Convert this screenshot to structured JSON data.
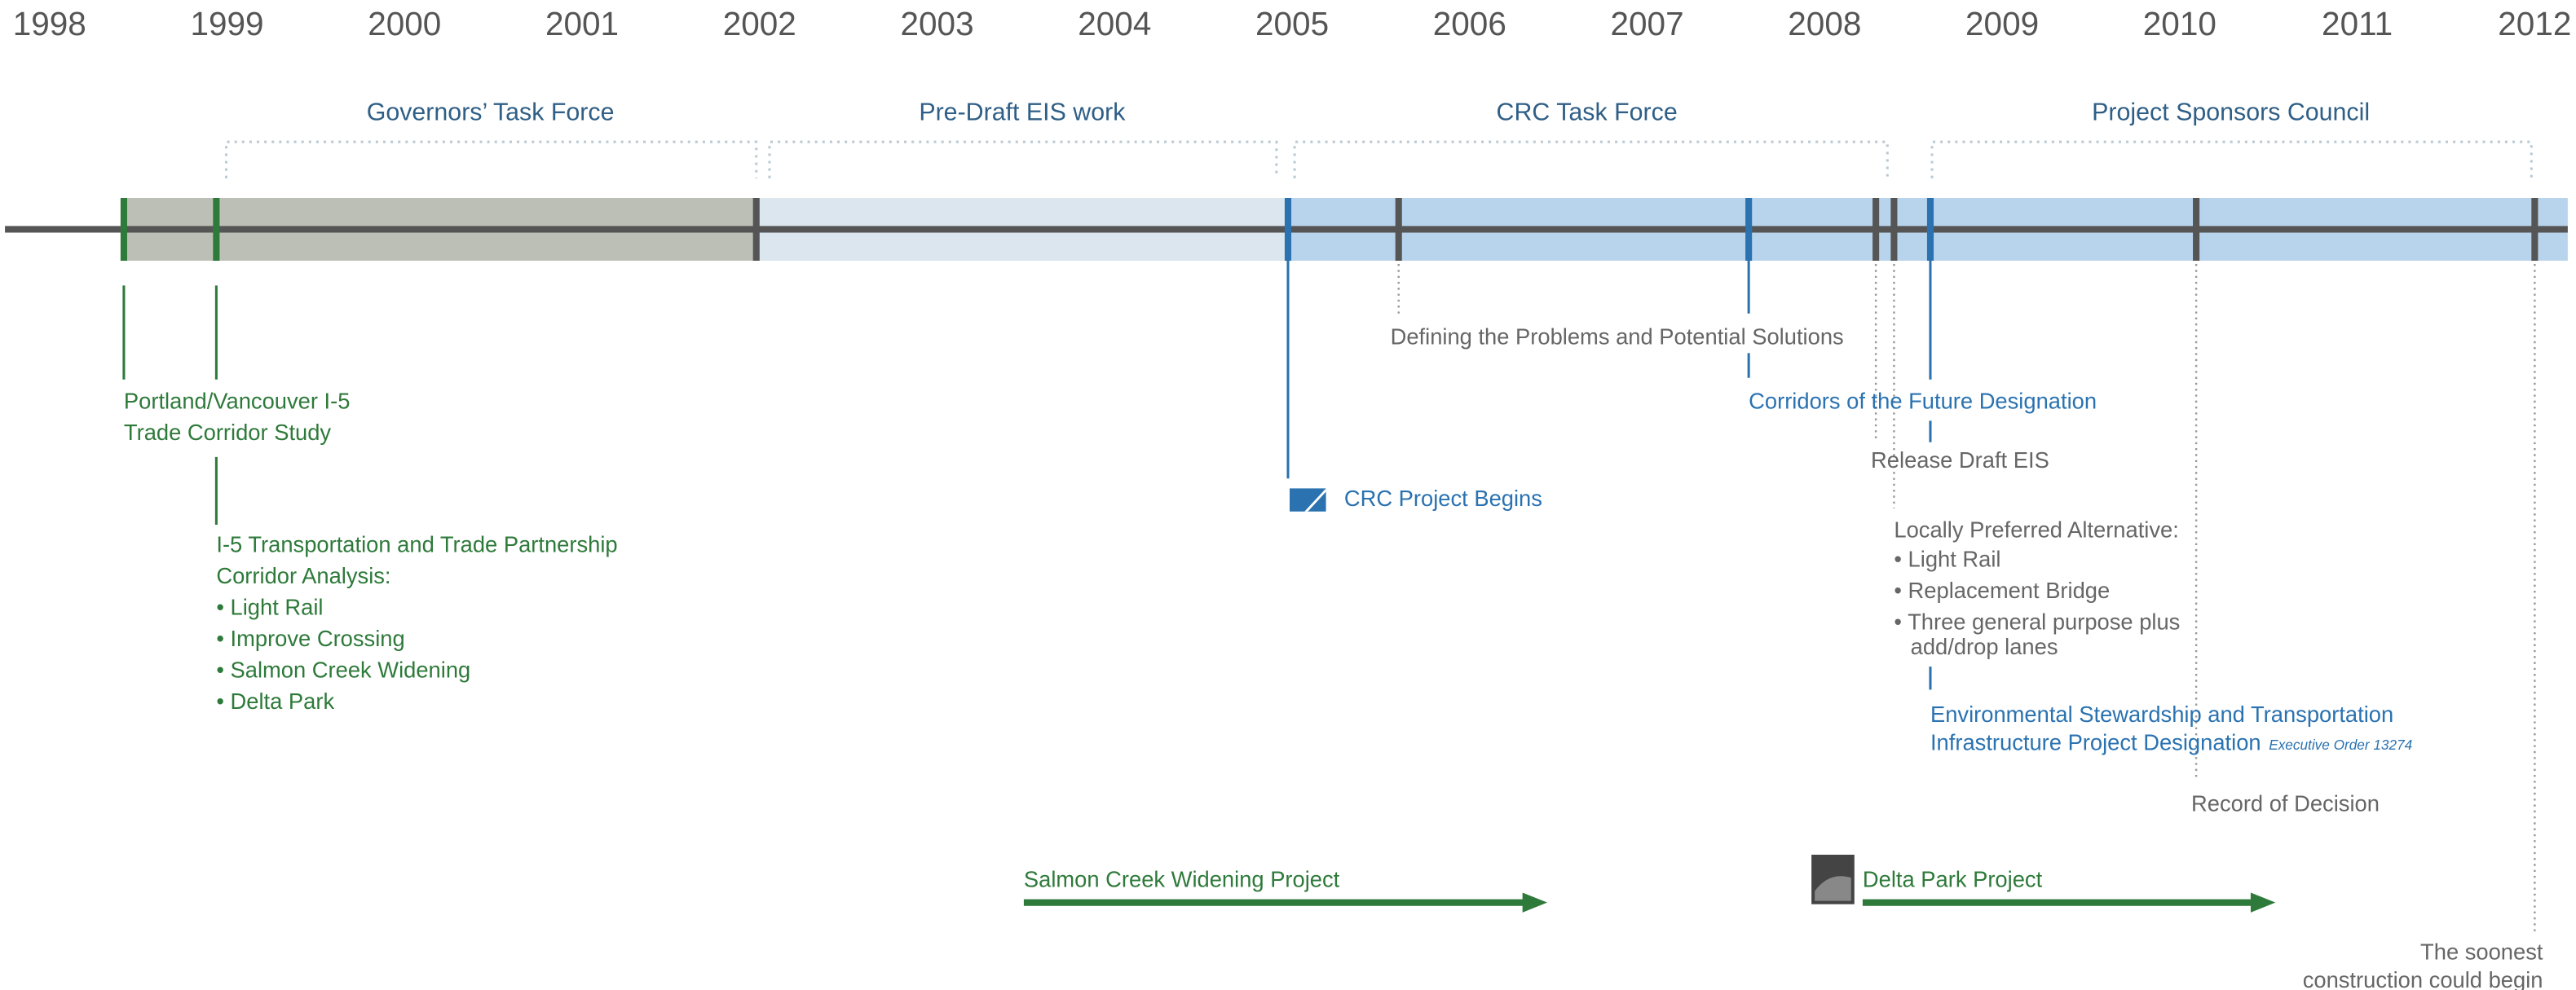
{
  "years": [
    "1998",
    "1999",
    "2000",
    "2001",
    "2002",
    "2003",
    "2004",
    "2005",
    "2006",
    "2007",
    "2008",
    "2009",
    "2010",
    "2011",
    "2012"
  ],
  "phases": [
    "Governors’ Task Force",
    "Pre-Draft EIS work",
    "CRC Task Force",
    "Project Sponsors Council"
  ],
  "events": [
    {
      "lines": [
        "Portland/Vancouver I-5",
        "Trade Corridor Study"
      ]
    },
    {
      "lines": [
        "I-5 Transportation and Trade Partnership",
        "Corridor Analysis:",
        "• Light Rail",
        "• Improve Crossing",
        "• Salmon Creek Widening",
        "• Delta Park"
      ]
    },
    {
      "lines": [
        "CRC Project Begins"
      ]
    },
    {
      "lines": [
        "Defining the Problems and Potential Solutions"
      ]
    },
    {
      "lines": [
        "Corridors of the Future Designation"
      ]
    },
    {
      "lines": [
        "Release Draft EIS"
      ]
    },
    {
      "lines": [
        "Locally Preferred Alternative:",
        "• Light Rail",
        "• Replacement Bridge",
        "• Three general purpose plus",
        "add/drop lanes"
      ]
    },
    {
      "lines": [
        "Environmental Stewardship and Transportation",
        "Infrastructure Project Designation"
      ],
      "note": "Executive Order 13274"
    },
    {
      "lines": [
        "Record of Decision"
      ]
    },
    {
      "lines": [
        "The soonest",
        "construction could begin"
      ]
    }
  ],
  "projects": [
    "Salmon Creek Widening Project",
    "Delta Park Project"
  ]
}
